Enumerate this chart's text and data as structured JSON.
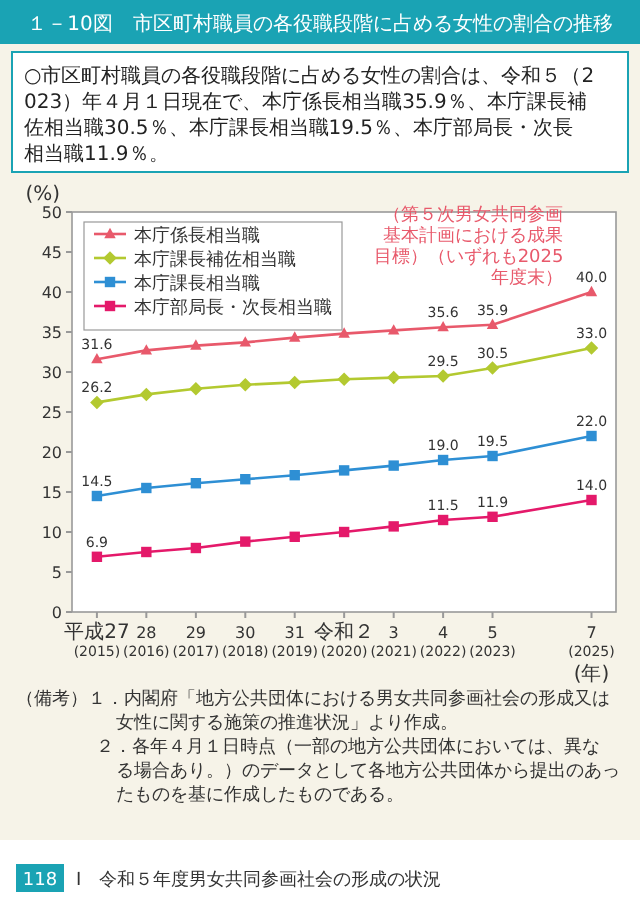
{
  "chart_data": {
    "type": "line",
    "title": "１－10図　市区町村職員の各役職段階に占める女性の割合の推移",
    "subtitle": "○市区町村職員の各役職段階に占める女性の割合は、令和５（2023）年４月１日現在で、本庁係長相当職35.9％、本庁課長補佐相当職30.5％、本庁課長相当職19.5％、本庁部局長・次長相当職11.9％。",
    "ylabel": "(%)",
    "xlabel": "(年)",
    "x": [
      "2015",
      "2016",
      "2017",
      "2018",
      "2019",
      "2020",
      "2021",
      "2022",
      "2023",
      "2025"
    ],
    "xlim": [
      "2014-07",
      "2025-07"
    ],
    "xticks": [
      {
        "value": "2015",
        "label": "平成27\n(2015)"
      },
      {
        "value": "2016",
        "label": "28\n(2016)"
      },
      {
        "value": "2017",
        "label": "29\n(2017)"
      },
      {
        "value": "2018",
        "label": "30\n(2018)"
      },
      {
        "value": "2019",
        "label": "31\n(2019)"
      },
      {
        "value": "2020",
        "label": "令和２\n(2020)"
      },
      {
        "value": "2021",
        "label": "3\n(2021)"
      },
      {
        "value": "2022",
        "label": "4\n(2022)"
      },
      {
        "value": "2023",
        "label": "5\n(2023)"
      },
      {
        "value": "2025",
        "label": "7\n(2025)"
      }
    ],
    "ylim": [
      0,
      50
    ],
    "yticks": [
      0,
      5,
      10,
      15,
      20,
      25,
      30,
      35,
      40,
      45,
      50
    ],
    "legend": "top left",
    "series": [
      {
        "name": "本庁係長相当職",
        "color": "#e8596b",
        "marker": "triangle",
        "values": [
          31.6,
          32.7,
          33.3,
          33.7,
          34.3,
          34.8,
          35.2,
          35.6,
          35.9,
          40.0
        ],
        "value_labels": [
          "31.6",
          null,
          null,
          null,
          null,
          null,
          null,
          "35.6",
          "35.9",
          "40.0"
        ]
      },
      {
        "name": "本庁課長補佐相当職",
        "color": "#b3c930",
        "marker": "diamond",
        "values": [
          26.2,
          27.2,
          27.9,
          28.4,
          28.7,
          29.1,
          29.3,
          29.5,
          30.5,
          33.0
        ],
        "value_labels": [
          "26.2",
          null,
          null,
          null,
          null,
          null,
          null,
          "29.5",
          "30.5",
          "33.0"
        ]
      },
      {
        "name": "本庁課長相当職",
        "color": "#2e8fd4",
        "marker": "square",
        "values": [
          14.5,
          15.5,
          16.1,
          16.6,
          17.1,
          17.7,
          18.3,
          19.0,
          19.5,
          22.0
        ],
        "value_labels": [
          "14.5",
          null,
          null,
          null,
          null,
          null,
          null,
          "19.0",
          "19.5",
          "22.0"
        ]
      },
      {
        "name": "本庁部局長・次長相当職",
        "color": "#e4196a",
        "marker": "square",
        "values": [
          6.9,
          7.5,
          8.0,
          8.8,
          9.4,
          10.0,
          10.7,
          11.5,
          11.9,
          14.0
        ],
        "value_labels": [
          "6.9",
          null,
          null,
          null,
          null,
          null,
          null,
          "11.5",
          "11.9",
          "14.0"
        ]
      }
    ],
    "annotations": [
      {
        "text": "（第５次男女共同参画基本計画における成果目標）（いずれも2025年度末）",
        "x": "2025",
        "y": 40.0
      },
      "（備考）１．内閣府「地方公共団体における男女共同参画社会の形成又は女性に関する施策の推進状況」より作成。",
      "２．各年４月１日時点（一部の地方公共団体においては、異なる場合あり。）のデータとして各地方公共団体から提出のあったものを基に作成したものである。",
      "118",
      "I　令和５年度男女共同参画社会の形成の状況"
    ]
  }
}
